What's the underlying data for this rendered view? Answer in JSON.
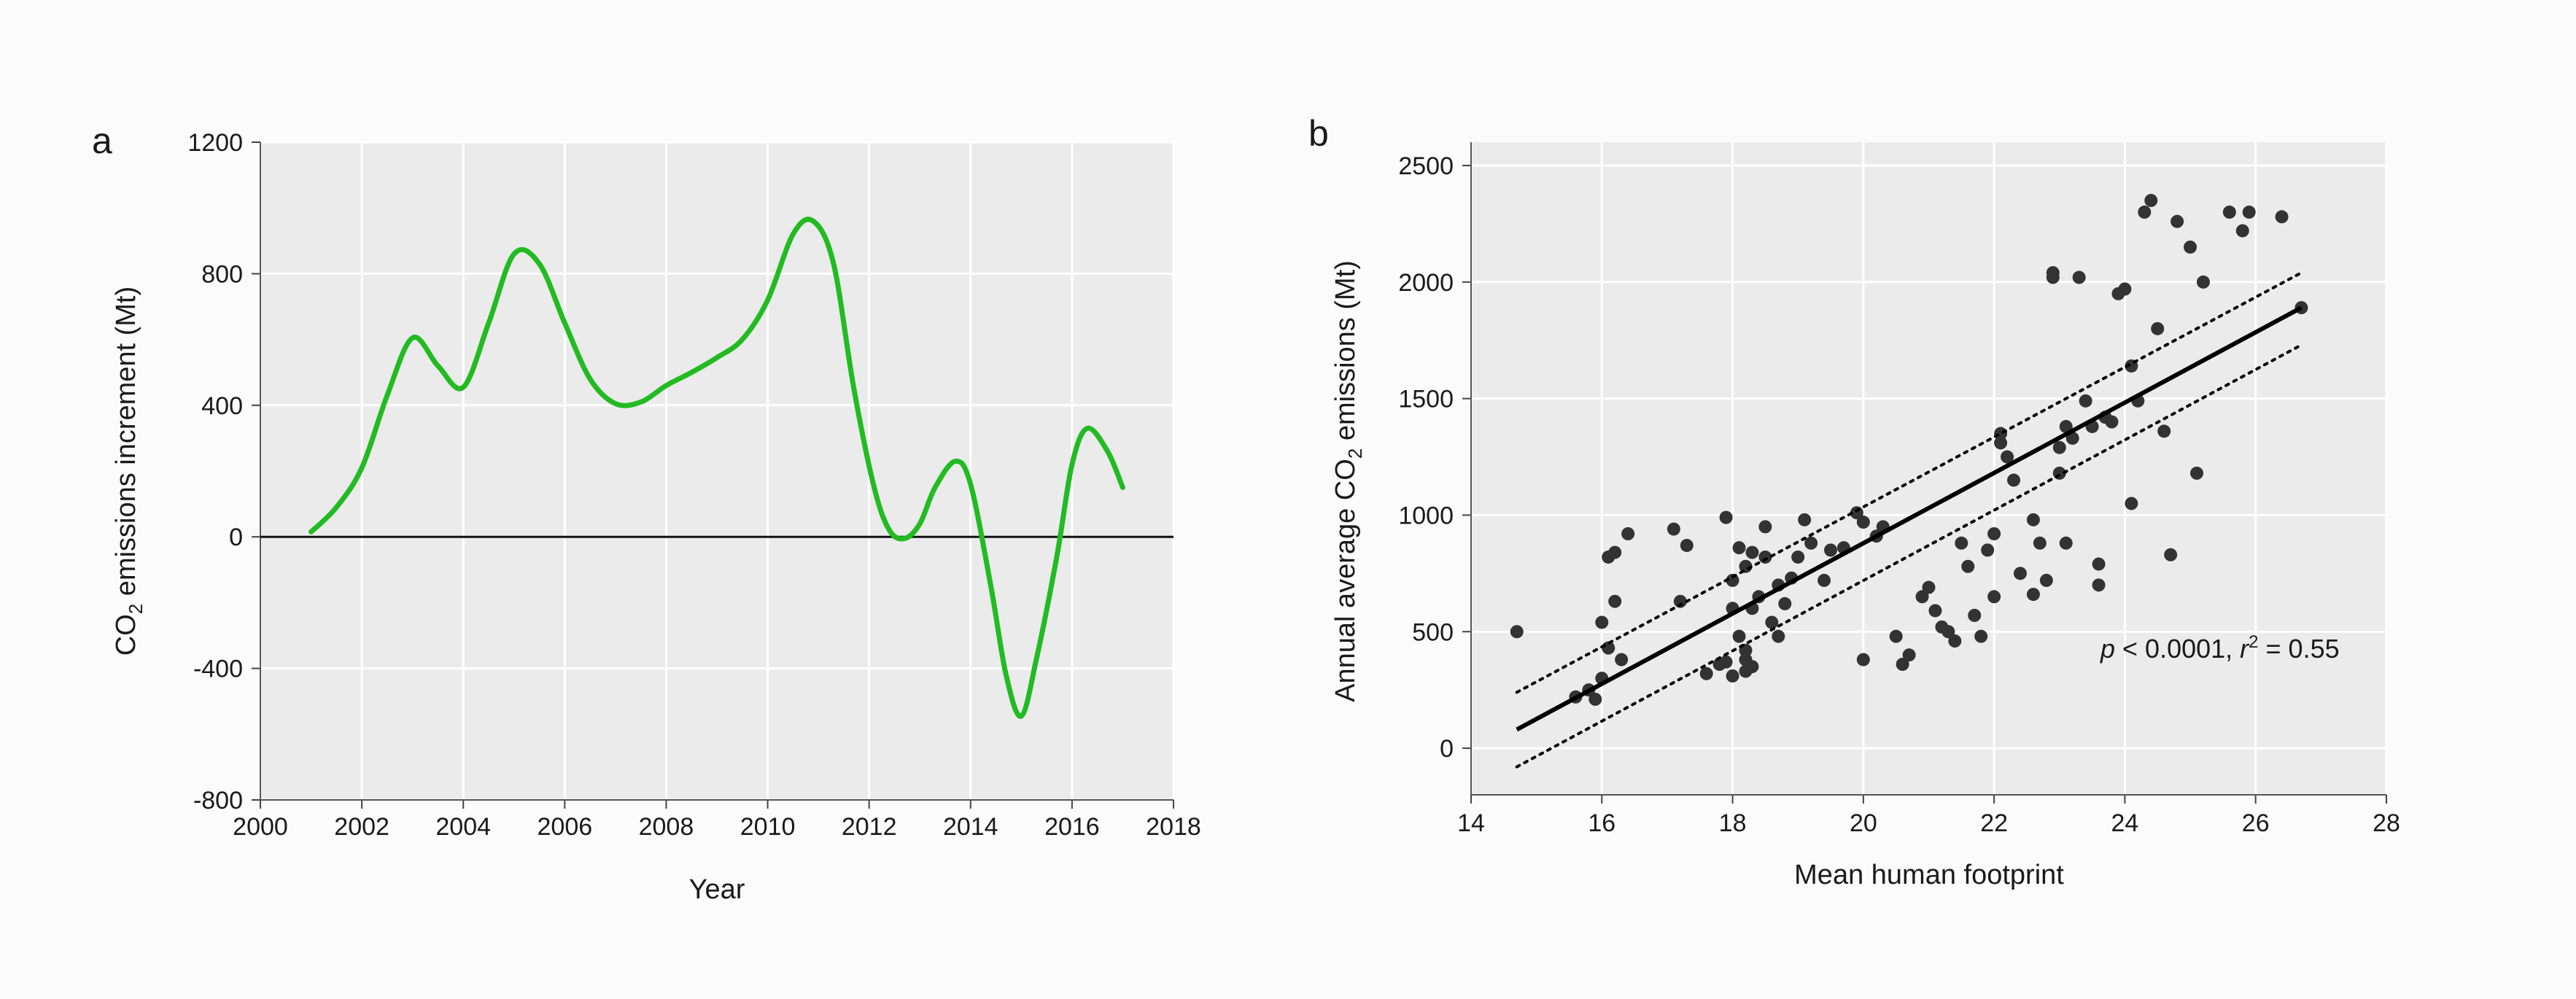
{
  "chart_data": [
    {
      "panel": "a",
      "type": "line",
      "title": "",
      "xlabel": "Year",
      "ylabel": "CO",
      "ylabel_sub": "2",
      "ylabel_rest": " emissions increment (Mt)",
      "xlim": [
        2000,
        2018
      ],
      "ylim": [
        -800,
        1200
      ],
      "xticks": [
        2000,
        2002,
        2004,
        2006,
        2008,
        2010,
        2012,
        2014,
        2016,
        2018
      ],
      "yticks": [
        -800,
        -400,
        0,
        400,
        800,
        1200
      ],
      "grid": true,
      "reference_line_y": 0,
      "series": [
        {
          "name": "CO2 emissions increment",
          "color": "#22bb22",
          "points": [
            [
              2001.0,
              15
            ],
            [
              2001.5,
              90
            ],
            [
              2002.0,
              210
            ],
            [
              2002.5,
              430
            ],
            [
              2003.0,
              605
            ],
            [
              2003.5,
              520
            ],
            [
              2004.0,
              455
            ],
            [
              2004.5,
              650
            ],
            [
              2005.0,
              860
            ],
            [
              2005.5,
              830
            ],
            [
              2006.0,
              650
            ],
            [
              2006.5,
              480
            ],
            [
              2007.0,
              405
            ],
            [
              2007.5,
              410
            ],
            [
              2008.0,
              460
            ],
            [
              2008.5,
              500
            ],
            [
              2009.0,
              545
            ],
            [
              2009.5,
              600
            ],
            [
              2010.0,
              720
            ],
            [
              2010.5,
              920
            ],
            [
              2010.9,
              960
            ],
            [
              2011.3,
              830
            ],
            [
              2011.7,
              450
            ],
            [
              2012.1,
              150
            ],
            [
              2012.4,
              20
            ],
            [
              2012.7,
              -5
            ],
            [
              2013.0,
              40
            ],
            [
              2013.3,
              150
            ],
            [
              2013.7,
              230
            ],
            [
              2014.0,
              160
            ],
            [
              2014.4,
              -150
            ],
            [
              2014.7,
              -420
            ],
            [
              2015.0,
              -545
            ],
            [
              2015.3,
              -370
            ],
            [
              2015.7,
              -60
            ],
            [
              2016.0,
              220
            ],
            [
              2016.3,
              330
            ],
            [
              2016.7,
              260
            ],
            [
              2017.0,
              150
            ]
          ]
        }
      ]
    },
    {
      "panel": "b",
      "type": "scatter",
      "title": "",
      "xlabel": "Mean human footprint",
      "ylabel": "Annual average CO",
      "ylabel_sub": "2",
      "ylabel_rest": " emissions (Mt)",
      "xlim": [
        14,
        28
      ],
      "ylim": [
        -200,
        2600
      ],
      "xticks": [
        14,
        16,
        18,
        20,
        22,
        24,
        26,
        28
      ],
      "yticks": [
        0,
        500,
        1000,
        1500,
        2000,
        2500
      ],
      "grid": true,
      "point_color": "#333333",
      "regression": {
        "x": [
          14.7,
          26.7
        ],
        "y": [
          80,
          1890
        ],
        "ci_upper": [
          240,
          2040
        ],
        "ci_lower": [
          -80,
          1730
        ]
      },
      "annotation": {
        "p_symbol": "p",
        "p_text": " < 0.0001, ",
        "r_symbol": "r",
        "r_sup": "2",
        "r_text": " = 0.55"
      },
      "points": [
        [
          14.7,
          500
        ],
        [
          15.6,
          220
        ],
        [
          15.8,
          250
        ],
        [
          15.9,
          210
        ],
        [
          16.0,
          300
        ],
        [
          16.0,
          540
        ],
        [
          16.1,
          430
        ],
        [
          16.1,
          820
        ],
        [
          16.2,
          840
        ],
        [
          16.2,
          630
        ],
        [
          16.3,
          380
        ],
        [
          16.4,
          920
        ],
        [
          17.1,
          940
        ],
        [
          17.3,
          870
        ],
        [
          17.2,
          630
        ],
        [
          17.6,
          320
        ],
        [
          17.8,
          360
        ],
        [
          17.9,
          990
        ],
        [
          18.0,
          720
        ],
        [
          18.0,
          600
        ],
        [
          18.1,
          860
        ],
        [
          18.1,
          480
        ],
        [
          18.2,
          420
        ],
        [
          18.2,
          380
        ],
        [
          18.2,
          780
        ],
        [
          18.3,
          840
        ],
        [
          18.3,
          600
        ],
        [
          18.4,
          650
        ],
        [
          18.5,
          950
        ],
        [
          18.5,
          820
        ],
        [
          18.6,
          540
        ],
        [
          18.7,
          480
        ],
        [
          18.7,
          700
        ],
        [
          18.0,
          310
        ],
        [
          18.2,
          330
        ],
        [
          18.3,
          350
        ],
        [
          18.9,
          730
        ],
        [
          19.1,
          980
        ],
        [
          19.2,
          880
        ],
        [
          19.4,
          720
        ],
        [
          19.5,
          850
        ],
        [
          19.7,
          860
        ],
        [
          19.9,
          1010
        ],
        [
          20.0,
          970
        ],
        [
          20.0,
          380
        ],
        [
          20.2,
          910
        ],
        [
          20.3,
          950
        ],
        [
          20.5,
          480
        ],
        [
          20.6,
          360
        ],
        [
          20.7,
          400
        ],
        [
          20.9,
          650
        ],
        [
          21.0,
          690
        ],
        [
          21.1,
          590
        ],
        [
          21.2,
          520
        ],
        [
          21.4,
          460
        ],
        [
          21.5,
          880
        ],
        [
          21.6,
          780
        ],
        [
          21.7,
          570
        ],
        [
          21.8,
          480
        ],
        [
          21.9,
          850
        ],
        [
          22.0,
          920
        ],
        [
          22.0,
          650
        ],
        [
          22.1,
          1350
        ],
        [
          22.1,
          1310
        ],
        [
          22.2,
          1250
        ],
        [
          22.3,
          1150
        ],
        [
          22.4,
          750
        ],
        [
          22.6,
          980
        ],
        [
          22.7,
          880
        ],
        [
          22.8,
          720
        ],
        [
          22.9,
          2040
        ],
        [
          22.9,
          2020
        ],
        [
          23.0,
          1290
        ],
        [
          23.0,
          1180
        ],
        [
          23.1,
          1380
        ],
        [
          23.1,
          880
        ],
        [
          23.2,
          1330
        ],
        [
          23.3,
          2020
        ],
        [
          23.4,
          1490
        ],
        [
          23.5,
          1380
        ],
        [
          23.6,
          700
        ],
        [
          23.7,
          1420
        ],
        [
          23.8,
          1400
        ],
        [
          23.9,
          1950
        ],
        [
          24.0,
          1970
        ],
        [
          24.1,
          1640
        ],
        [
          24.1,
          1050
        ],
        [
          24.2,
          1490
        ],
        [
          24.3,
          2300
        ],
        [
          24.4,
          2350
        ],
        [
          24.5,
          1800
        ],
        [
          24.6,
          1360
        ],
        [
          24.7,
          830
        ],
        [
          24.8,
          2260
        ],
        [
          25.0,
          2150
        ],
        [
          25.1,
          1180
        ],
        [
          25.2,
          2000
        ],
        [
          25.6,
          2300
        ],
        [
          25.8,
          2220
        ],
        [
          25.9,
          2300
        ],
        [
          26.4,
          2280
        ],
        [
          26.7,
          1890
        ],
        [
          21.3,
          500
        ],
        [
          22.6,
          660
        ],
        [
          23.6,
          790
        ],
        [
          18.8,
          620
        ],
        [
          17.9,
          370
        ],
        [
          19.0,
          820
        ]
      ]
    }
  ],
  "panel_labels": [
    "a",
    "b"
  ]
}
